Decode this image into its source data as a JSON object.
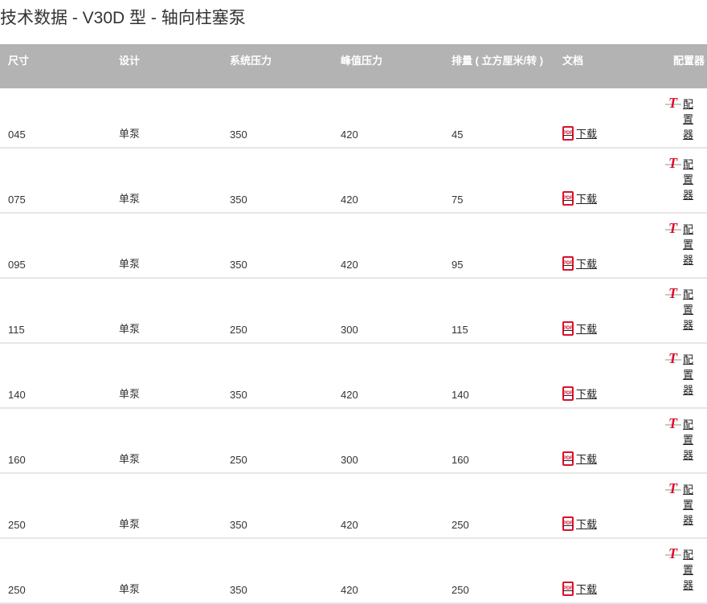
{
  "title": "技术数据 - V30D 型 - 轴向柱塞泵",
  "headers": [
    "尺寸",
    "设计",
    "系统压力",
    "峰值压力",
    "排量 ( 立方厘米/转 )",
    "文档",
    "配置器"
  ],
  "rows": [
    {
      "size": "045",
      "design": "单泵",
      "system": "350",
      "peak": "420",
      "disp": "45"
    },
    {
      "size": "075",
      "design": "单泵",
      "system": "350",
      "peak": "420",
      "disp": "75"
    },
    {
      "size": "095",
      "design": "单泵",
      "system": "350",
      "peak": "420",
      "disp": "95"
    },
    {
      "size": "115",
      "design": "单泵",
      "system": "250",
      "peak": "300",
      "disp": "115"
    },
    {
      "size": "140",
      "design": "单泵",
      "system": "350",
      "peak": "420",
      "disp": "140"
    },
    {
      "size": "160",
      "design": "单泵",
      "system": "250",
      "peak": "300",
      "disp": "160"
    },
    {
      "size": "250",
      "design": "单泵",
      "system": "350",
      "peak": "420",
      "disp": "250"
    },
    {
      "size": "250",
      "design": "单泵",
      "system": "350",
      "peak": "420",
      "disp": "250"
    }
  ],
  "download_label": "下载",
  "configurator_label": "配置器",
  "pdf_icon_text": "PDF",
  "accent": "#d9112b",
  "header_bg": "#b3b3b3"
}
